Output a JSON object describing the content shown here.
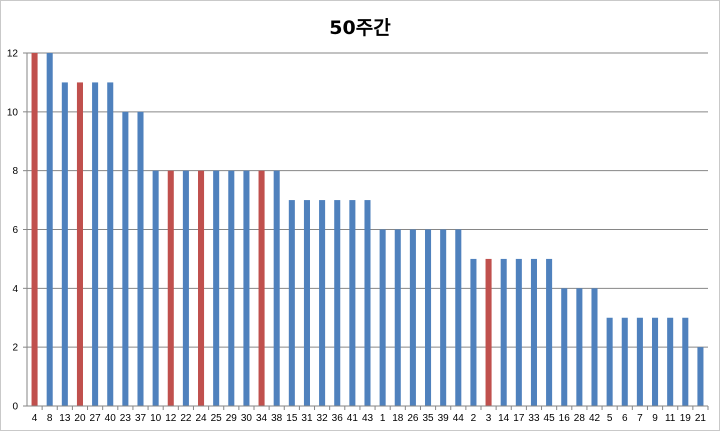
{
  "chart_data": {
    "type": "bar",
    "title": "50주간",
    "xlabel": "",
    "ylabel": "",
    "ylim": [
      0,
      12
    ],
    "ytick_step": 2,
    "grid": true,
    "legend": "none",
    "colors": {
      "default": "#4f81bd",
      "highlight": "#c0504d",
      "grid": "#868686"
    },
    "categories": [
      "4",
      "8",
      "13",
      "20",
      "27",
      "40",
      "23",
      "37",
      "10",
      "12",
      "22",
      "24",
      "25",
      "29",
      "30",
      "34",
      "38",
      "15",
      "31",
      "32",
      "36",
      "41",
      "43",
      "1",
      "18",
      "26",
      "35",
      "39",
      "44",
      "2",
      "3",
      "14",
      "17",
      "33",
      "45",
      "16",
      "28",
      "42",
      "5",
      "6",
      "7",
      "9",
      "11",
      "19",
      "21"
    ],
    "values": [
      12,
      12,
      11,
      11,
      11,
      11,
      10,
      10,
      8,
      8,
      8,
      8,
      8,
      8,
      8,
      8,
      8,
      7,
      7,
      7,
      7,
      7,
      7,
      6,
      6,
      6,
      6,
      6,
      6,
      5,
      5,
      5,
      5,
      5,
      5,
      4,
      4,
      4,
      3,
      3,
      3,
      3,
      3,
      3,
      2
    ],
    "highlighted": [
      "4",
      "20",
      "12",
      "24",
      "34",
      "3"
    ]
  }
}
